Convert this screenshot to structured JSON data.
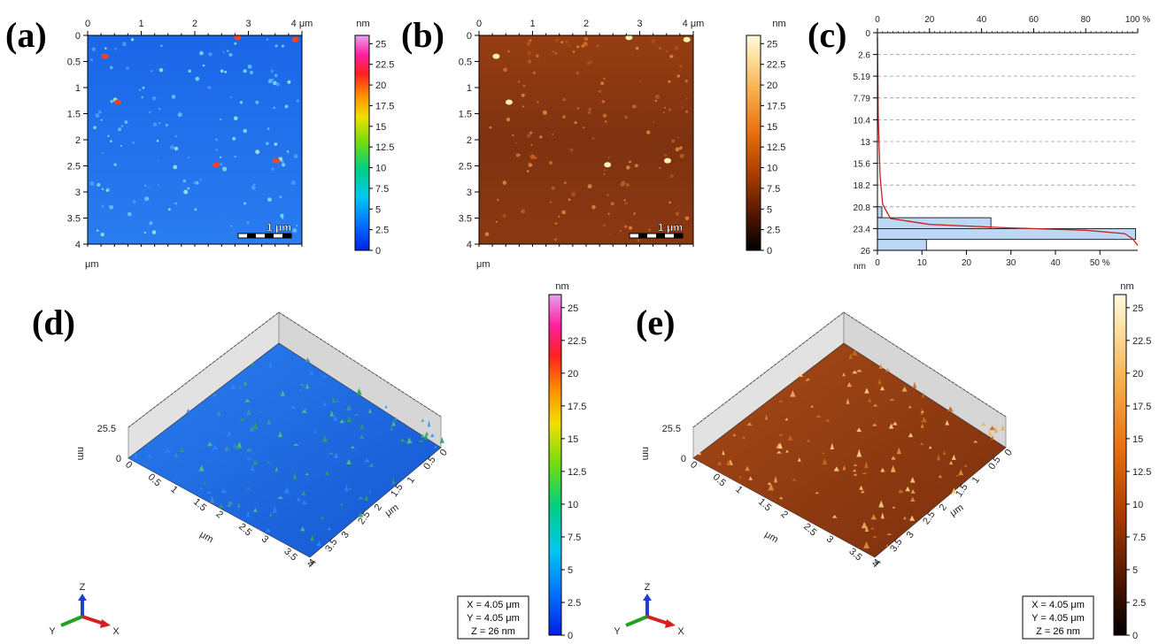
{
  "panel_labels": {
    "a": "(a)",
    "b": "(b)",
    "c": "(c)",
    "d": "(d)",
    "e": "(e)"
  },
  "colors": {
    "map_a_bg": "#1f6fe6",
    "map_b_bg": "#8f3d10",
    "histogram_bar": "#bcd8f5",
    "histogram_curve": "#cc1f1f",
    "axis_x_color": "#d62020",
    "axis_y_color": "#22a022",
    "axis_z_color": "#2040d0"
  },
  "chart_data": [
    {
      "id": "a",
      "type": "heatmap",
      "title": "",
      "xlabel": "",
      "ylabel": "μm",
      "x_ticks": [
        "0",
        "1",
        "2",
        "3",
        "4 μm"
      ],
      "y_ticks": [
        "0",
        "0.5",
        "1",
        "1.5",
        "2",
        "2.5",
        "3",
        "3.5",
        "4"
      ],
      "xlim": [
        0,
        4
      ],
      "ylim": [
        0,
        4
      ],
      "scalebar": "1 μm",
      "colorscale": "rainbow",
      "colorbar": {
        "unit": "nm",
        "ticks": [
          "25",
          "22.5",
          "20",
          "17.5",
          "15",
          "12.5",
          "10",
          "7.5",
          "5",
          "2.5",
          "0"
        ],
        "range": [
          0,
          26
        ]
      }
    },
    {
      "id": "b",
      "type": "heatmap",
      "title": "",
      "xlabel": "",
      "ylabel": "μm",
      "x_ticks": [
        "0",
        "1",
        "2",
        "3",
        "4 μm"
      ],
      "y_ticks": [
        "0",
        "0.5",
        "1",
        "1.5",
        "2",
        "2.5",
        "3",
        "3.5",
        "4"
      ],
      "xlim": [
        0,
        4
      ],
      "ylim": [
        0,
        4
      ],
      "scalebar": "1 μm",
      "colorscale": "orange-brown",
      "colorbar": {
        "unit": "nm",
        "ticks": [
          "25",
          "22.5",
          "20",
          "17.5",
          "15",
          "12.5",
          "10",
          "7.5",
          "5",
          "2.5",
          "0"
        ],
        "range": [
          0,
          26
        ]
      }
    },
    {
      "id": "c",
      "type": "bar",
      "title": "",
      "orientation": "horizontal",
      "top_axis_ticks": [
        "0",
        "20",
        "40",
        "60",
        "80",
        "100 %"
      ],
      "bottom_axis_ticks": [
        "0",
        "10",
        "20",
        "30",
        "40",
        "50 %"
      ],
      "y_unit": "nm",
      "y_ticks": [
        "0",
        "2.6",
        "5.19",
        "7.79",
        "10.4",
        "13",
        "15.6",
        "18.2",
        "20.8",
        "23.4",
        "26"
      ],
      "ylim": [
        0,
        26
      ],
      "bars": [
        {
          "from": 20.8,
          "to": 22.1,
          "value": 1.0
        },
        {
          "from": 22.1,
          "to": 23.4,
          "value": 25.5
        },
        {
          "from": 23.4,
          "to": 24.7,
          "value": 58.0
        },
        {
          "from": 24.7,
          "to": 26.0,
          "value": 11.0
        }
      ],
      "bearing_curve": [
        {
          "percent": 0,
          "height": 0.5
        },
        {
          "percent": 0.3,
          "height": 10
        },
        {
          "percent": 1,
          "height": 17
        },
        {
          "percent": 2,
          "height": 20.5
        },
        {
          "percent": 5,
          "height": 22.2
        },
        {
          "percent": 20,
          "height": 22.9
        },
        {
          "percent": 50,
          "height": 23.3
        },
        {
          "percent": 80,
          "height": 23.6
        },
        {
          "percent": 95,
          "height": 24.0
        },
        {
          "percent": 98,
          "height": 24.6
        },
        {
          "percent": 100,
          "height": 25.4
        }
      ]
    },
    {
      "id": "d",
      "type": "3d-surface",
      "z_label": "nm",
      "z_ticks": [
        "25.5",
        "0"
      ],
      "x_ticks": [
        "0",
        "0.5",
        "1",
        "1.5",
        "2",
        "2.5",
        "3",
        "3.5",
        "4"
      ],
      "y_ticks": [
        "4",
        "3.5",
        "3",
        "2.5",
        "2",
        "1.5",
        "1",
        "0.5",
        "0"
      ],
      "axis_unit": "μm",
      "colorbar": {
        "unit": "nm",
        "ticks": [
          "25",
          "22.5",
          "20",
          "17.5",
          "15",
          "12.5",
          "10",
          "7.5",
          "5",
          "2.5",
          "0"
        ],
        "range": [
          0,
          26
        ]
      },
      "info": [
        "X = 4.05 μm",
        "Y = 4.05 μm",
        "Z = 26 nm"
      ],
      "axis_names": {
        "x": "X",
        "y": "Y",
        "z": "Z"
      }
    },
    {
      "id": "e",
      "type": "3d-surface",
      "z_label": "nm",
      "z_ticks": [
        "25.5",
        "0"
      ],
      "x_ticks": [
        "0",
        "0.5",
        "1",
        "1.5",
        "2",
        "2.5",
        "3",
        "3.5",
        "4"
      ],
      "y_ticks": [
        "4",
        "3.5",
        "3",
        "2.5",
        "2",
        "1.5",
        "1",
        "0.5",
        "0"
      ],
      "axis_unit": "μm",
      "colorbar": {
        "unit": "nm",
        "ticks": [
          "25",
          "22.5",
          "20",
          "17.5",
          "15",
          "12.5",
          "10",
          "7.5",
          "5",
          "2.5",
          "0"
        ],
        "range": [
          0,
          26
        ]
      },
      "info": [
        "X = 4.05 μm",
        "Y = 4.05 μm",
        "Z = 26 nm"
      ],
      "axis_names": {
        "x": "X",
        "y": "Y",
        "z": "Z"
      }
    }
  ]
}
